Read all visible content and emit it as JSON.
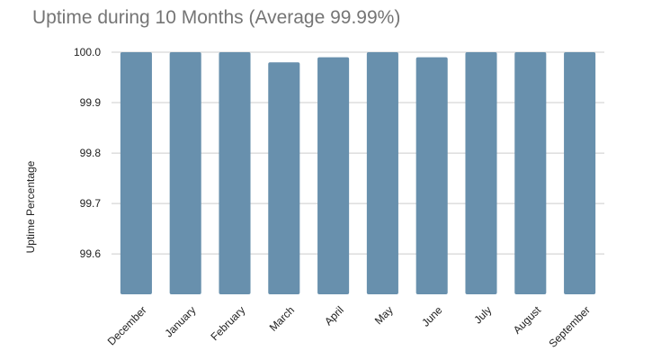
{
  "chart_data": {
    "type": "bar",
    "title": "Uptime during 10 Months (Average 99.99%)",
    "ylabel": "Uptime Percentage",
    "xlabel": "",
    "categories": [
      "December",
      "January",
      "February",
      "March",
      "April",
      "May",
      "June",
      "July",
      "August",
      "September"
    ],
    "values": [
      100.0,
      100.0,
      100.0,
      99.98,
      99.99,
      100.0,
      99.99,
      100.0,
      100.0,
      100.0
    ],
    "ylim": [
      99.52,
      100.0
    ],
    "yticks": [
      100.0,
      99.9,
      99.8,
      99.7,
      99.6
    ],
    "ytick_labels": [
      "100.0",
      "99.9",
      "99.8",
      "99.7",
      "99.6"
    ],
    "grid": true,
    "bar_color": "#6890ad",
    "grid_color": "#cccccc"
  }
}
